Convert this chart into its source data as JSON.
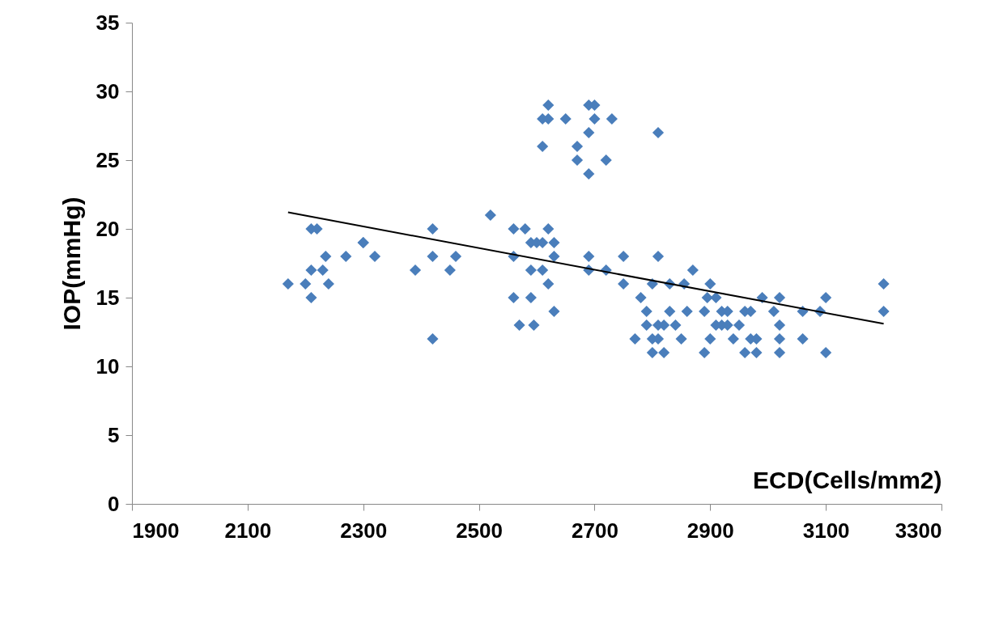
{
  "chart_data": {
    "type": "scatter",
    "xlabel": "ECD(Cells/mm2)",
    "ylabel": "IOP(mmHg)",
    "xlim": [
      1900,
      3300
    ],
    "xticks": [
      1900,
      2100,
      2300,
      2500,
      2700,
      2900,
      3100,
      3300
    ],
    "ylim": [
      0,
      35
    ],
    "yticks": [
      0,
      5,
      10,
      15,
      20,
      25,
      30,
      35
    ],
    "grid": false,
    "marker": "diamond",
    "series": [
      {
        "color": "#4a7ebb",
        "x": [
          2170,
          2200,
          2210,
          2210,
          2210,
          2220,
          2230,
          2235,
          2240,
          2270,
          2300,
          2300,
          2320,
          2390,
          2420,
          2420,
          2420,
          2450,
          2460,
          2520,
          2560,
          2580,
          2560,
          2560,
          2570,
          2590,
          2590,
          2600,
          2590,
          2595,
          2610,
          2610,
          2620,
          2630,
          2630,
          2620,
          2630,
          2610,
          2610,
          2620,
          2620,
          2650,
          2670,
          2670,
          2690,
          2700,
          2700,
          2690,
          2690,
          2720,
          2730,
          2810,
          2690,
          2690,
          2720,
          2750,
          2750,
          2770,
          2780,
          2790,
          2790,
          2800,
          2800,
          2800,
          2810,
          2810,
          2810,
          2820,
          2820,
          2830,
          2830,
          2840,
          2850,
          2855,
          2860,
          2870,
          2890,
          2890,
          2895,
          2900,
          2900,
          2910,
          2910,
          2920,
          2920,
          2930,
          2930,
          2940,
          2950,
          2960,
          2960,
          2970,
          2970,
          2980,
          2980,
          2990,
          3010,
          3020,
          3020,
          3020,
          3020,
          3060,
          3060,
          3090,
          3100,
          3100,
          3200,
          3200
        ],
        "values": [
          16,
          16,
          15,
          17,
          20,
          20,
          17,
          18,
          16,
          18,
          19,
          19,
          18,
          17,
          20,
          18,
          12,
          17,
          18,
          21,
          20,
          20,
          18,
          15,
          13,
          19,
          17,
          19,
          15,
          13,
          17,
          19,
          20,
          19,
          18,
          16,
          14,
          26,
          28,
          28,
          29,
          28,
          26,
          25,
          29,
          29,
          28,
          27,
          24,
          25,
          28,
          27,
          18,
          17,
          17,
          18,
          16,
          12,
          15,
          14,
          13,
          16,
          12,
          11,
          13,
          18,
          12,
          11,
          13,
          16,
          14,
          13,
          12,
          16,
          14,
          17,
          14,
          11,
          15,
          16,
          12,
          15,
          13,
          14,
          13,
          14,
          13,
          12,
          13,
          14,
          11,
          14,
          12,
          12,
          11,
          15,
          14,
          15,
          13,
          12,
          11,
          14,
          12,
          14,
          15,
          11,
          16,
          14
        ]
      },
      {
        "type": "line",
        "marker": "none",
        "color": "#000000",
        "x": [
          2170,
          3200
        ],
        "values": [
          21.2,
          13.1
        ]
      }
    ]
  }
}
